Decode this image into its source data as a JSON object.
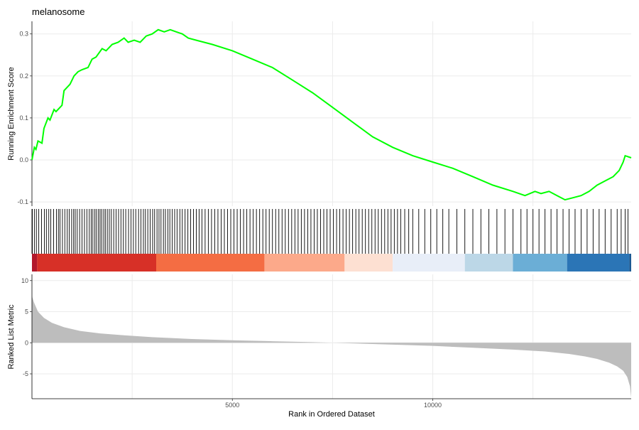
{
  "chart_data": {
    "type": "line",
    "title": "melanosome",
    "xlabel": "Rank in Ordered Dataset",
    "xlim": [
      0,
      14950
    ],
    "x_ticks": [
      5000,
      10000
    ],
    "grid": "vertical",
    "panels": [
      {
        "id": "enrichment",
        "ylabel": "Running Enrichment Score",
        "ylim": [
          -0.11,
          0.33
        ],
        "y_ticks": [
          -0.1,
          0.0,
          0.1,
          0.2,
          0.3
        ],
        "line_color": "#00ff00",
        "x": [
          0,
          60,
          100,
          150,
          250,
          300,
          400,
          450,
          550,
          600,
          750,
          800,
          950,
          1050,
          1150,
          1250,
          1400,
          1500,
          1600,
          1750,
          1850,
          2000,
          2150,
          2300,
          2400,
          2550,
          2700,
          2850,
          3000,
          3150,
          3300,
          3450,
          3600,
          3750,
          3900,
          4100,
          4500,
          5000,
          5500,
          6000,
          6500,
          7000,
          7500,
          8000,
          8500,
          9000,
          9500,
          10000,
          10500,
          11000,
          11500,
          12000,
          12300,
          12550,
          12700,
          12900,
          13100,
          13300,
          13500,
          13700,
          13900,
          14100,
          14300,
          14500,
          14650,
          14750,
          14800,
          14950
        ],
        "y": [
          0.0,
          0.03,
          0.025,
          0.045,
          0.04,
          0.075,
          0.1,
          0.095,
          0.12,
          0.115,
          0.13,
          0.165,
          0.18,
          0.2,
          0.21,
          0.215,
          0.22,
          0.24,
          0.245,
          0.265,
          0.26,
          0.275,
          0.28,
          0.29,
          0.28,
          0.285,
          0.28,
          0.295,
          0.3,
          0.31,
          0.305,
          0.31,
          0.305,
          0.3,
          0.29,
          0.285,
          0.275,
          0.26,
          0.24,
          0.22,
          0.19,
          0.16,
          0.125,
          0.09,
          0.055,
          0.03,
          0.01,
          -0.005,
          -0.02,
          -0.04,
          -0.06,
          -0.075,
          -0.085,
          -0.075,
          -0.08,
          -0.075,
          -0.085,
          -0.095,
          -0.09,
          -0.085,
          -0.075,
          -0.06,
          -0.05,
          -0.04,
          -0.025,
          -0.005,
          0.01,
          0.005
        ]
      },
      {
        "id": "hits",
        "description_ranks": [
          0,
          9000
        ],
        "hit_ranks": [
          10,
          60,
          110,
          170,
          240,
          310,
          360,
          420,
          470,
          540,
          610,
          660,
          700,
          760,
          820,
          880,
          930,
          990,
          1040,
          1080,
          1130,
          1190,
          1250,
          1310,
          1370,
          1430,
          1480,
          1520,
          1570,
          1610,
          1660,
          1700,
          1740,
          1790,
          1830,
          1880,
          1930,
          1980,
          2040,
          2100,
          2160,
          2220,
          2280,
          2340,
          2410,
          2470,
          2530,
          2590,
          2660,
          2720,
          2780,
          2830,
          2890,
          2950,
          3010,
          3060,
          3120,
          3170,
          3220,
          3280,
          3330,
          3390,
          3440,
          3500,
          3560,
          3620,
          3690,
          3750,
          3820,
          3890,
          3960,
          4030,
          4100,
          4170,
          4240,
          4320,
          4400,
          4480,
          4560,
          4640,
          4720,
          4800,
          4880,
          4960,
          5040,
          5120,
          5200,
          5280,
          5360,
          5440,
          5520,
          5600,
          5680,
          5760,
          5840,
          5920,
          6000,
          6080,
          6160,
          6240,
          6320,
          6400,
          6480,
          6560,
          6640,
          6720,
          6800,
          6880,
          6960,
          7040,
          7120,
          7200,
          7280,
          7360,
          7440,
          7520,
          7600,
          7680,
          7760,
          7840,
          7920,
          8000,
          8080,
          8160,
          8240,
          8320,
          8400,
          8480,
          8560,
          8640,
          8720,
          8800,
          8880,
          8960,
          9040,
          9120,
          9200,
          9300,
          9400,
          9500,
          9650,
          9800,
          9950,
          10100,
          10250,
          10400,
          10600,
          10800,
          11000,
          11200,
          11400,
          11600,
          11800,
          12000,
          12200,
          12350,
          12500,
          12650,
          12800,
          12950,
          13100,
          13250,
          13400,
          13550,
          13700,
          13850,
          14000,
          14150,
          14300,
          14450,
          14600,
          14700,
          14800,
          14870
        ]
      },
      {
        "id": "color_band",
        "segments": [
          {
            "from": 0,
            "to": 130,
            "color": "#b2182b"
          },
          {
            "from": 130,
            "to": 3100,
            "color": "#d73027"
          },
          {
            "from": 3100,
            "to": 5800,
            "color": "#f46d43"
          },
          {
            "from": 5800,
            "to": 7800,
            "color": "#fca98a"
          },
          {
            "from": 7800,
            "to": 9000,
            "color": "#fde0d2"
          },
          {
            "from": 9000,
            "to": 10800,
            "color": "#e8eef8"
          },
          {
            "from": 10800,
            "to": 12000,
            "color": "#bcd7e7"
          },
          {
            "from": 12000,
            "to": 13350,
            "color": "#6baed6"
          },
          {
            "from": 13350,
            "to": 14900,
            "color": "#2b75b6"
          },
          {
            "from": 14900,
            "to": 14950,
            "color": "#1c5a93"
          }
        ]
      },
      {
        "id": "ranked_metric",
        "ylabel": "Ranked List Metric",
        "ylim": [
          -9,
          11
        ],
        "y_ticks": [
          -5,
          0,
          5,
          10
        ],
        "fill_color": "#bdbdbd",
        "x": [
          0,
          50,
          150,
          300,
          500,
          800,
          1200,
          1700,
          2300,
          3000,
          4000,
          5000,
          6000,
          7000,
          7500,
          8000,
          9000,
          10000,
          11000,
          12000,
          12800,
          13400,
          13800,
          14100,
          14400,
          14600,
          14750,
          14850,
          14920,
          14950
        ],
        "y": [
          7.5,
          6.5,
          5.0,
          4.0,
          3.2,
          2.5,
          1.9,
          1.5,
          1.2,
          0.9,
          0.6,
          0.4,
          0.25,
          0.1,
          0.0,
          -0.1,
          -0.3,
          -0.5,
          -0.8,
          -1.1,
          -1.4,
          -1.8,
          -2.2,
          -2.6,
          -3.2,
          -3.8,
          -4.5,
          -5.5,
          -7.0,
          -8.8
        ]
      }
    ]
  }
}
